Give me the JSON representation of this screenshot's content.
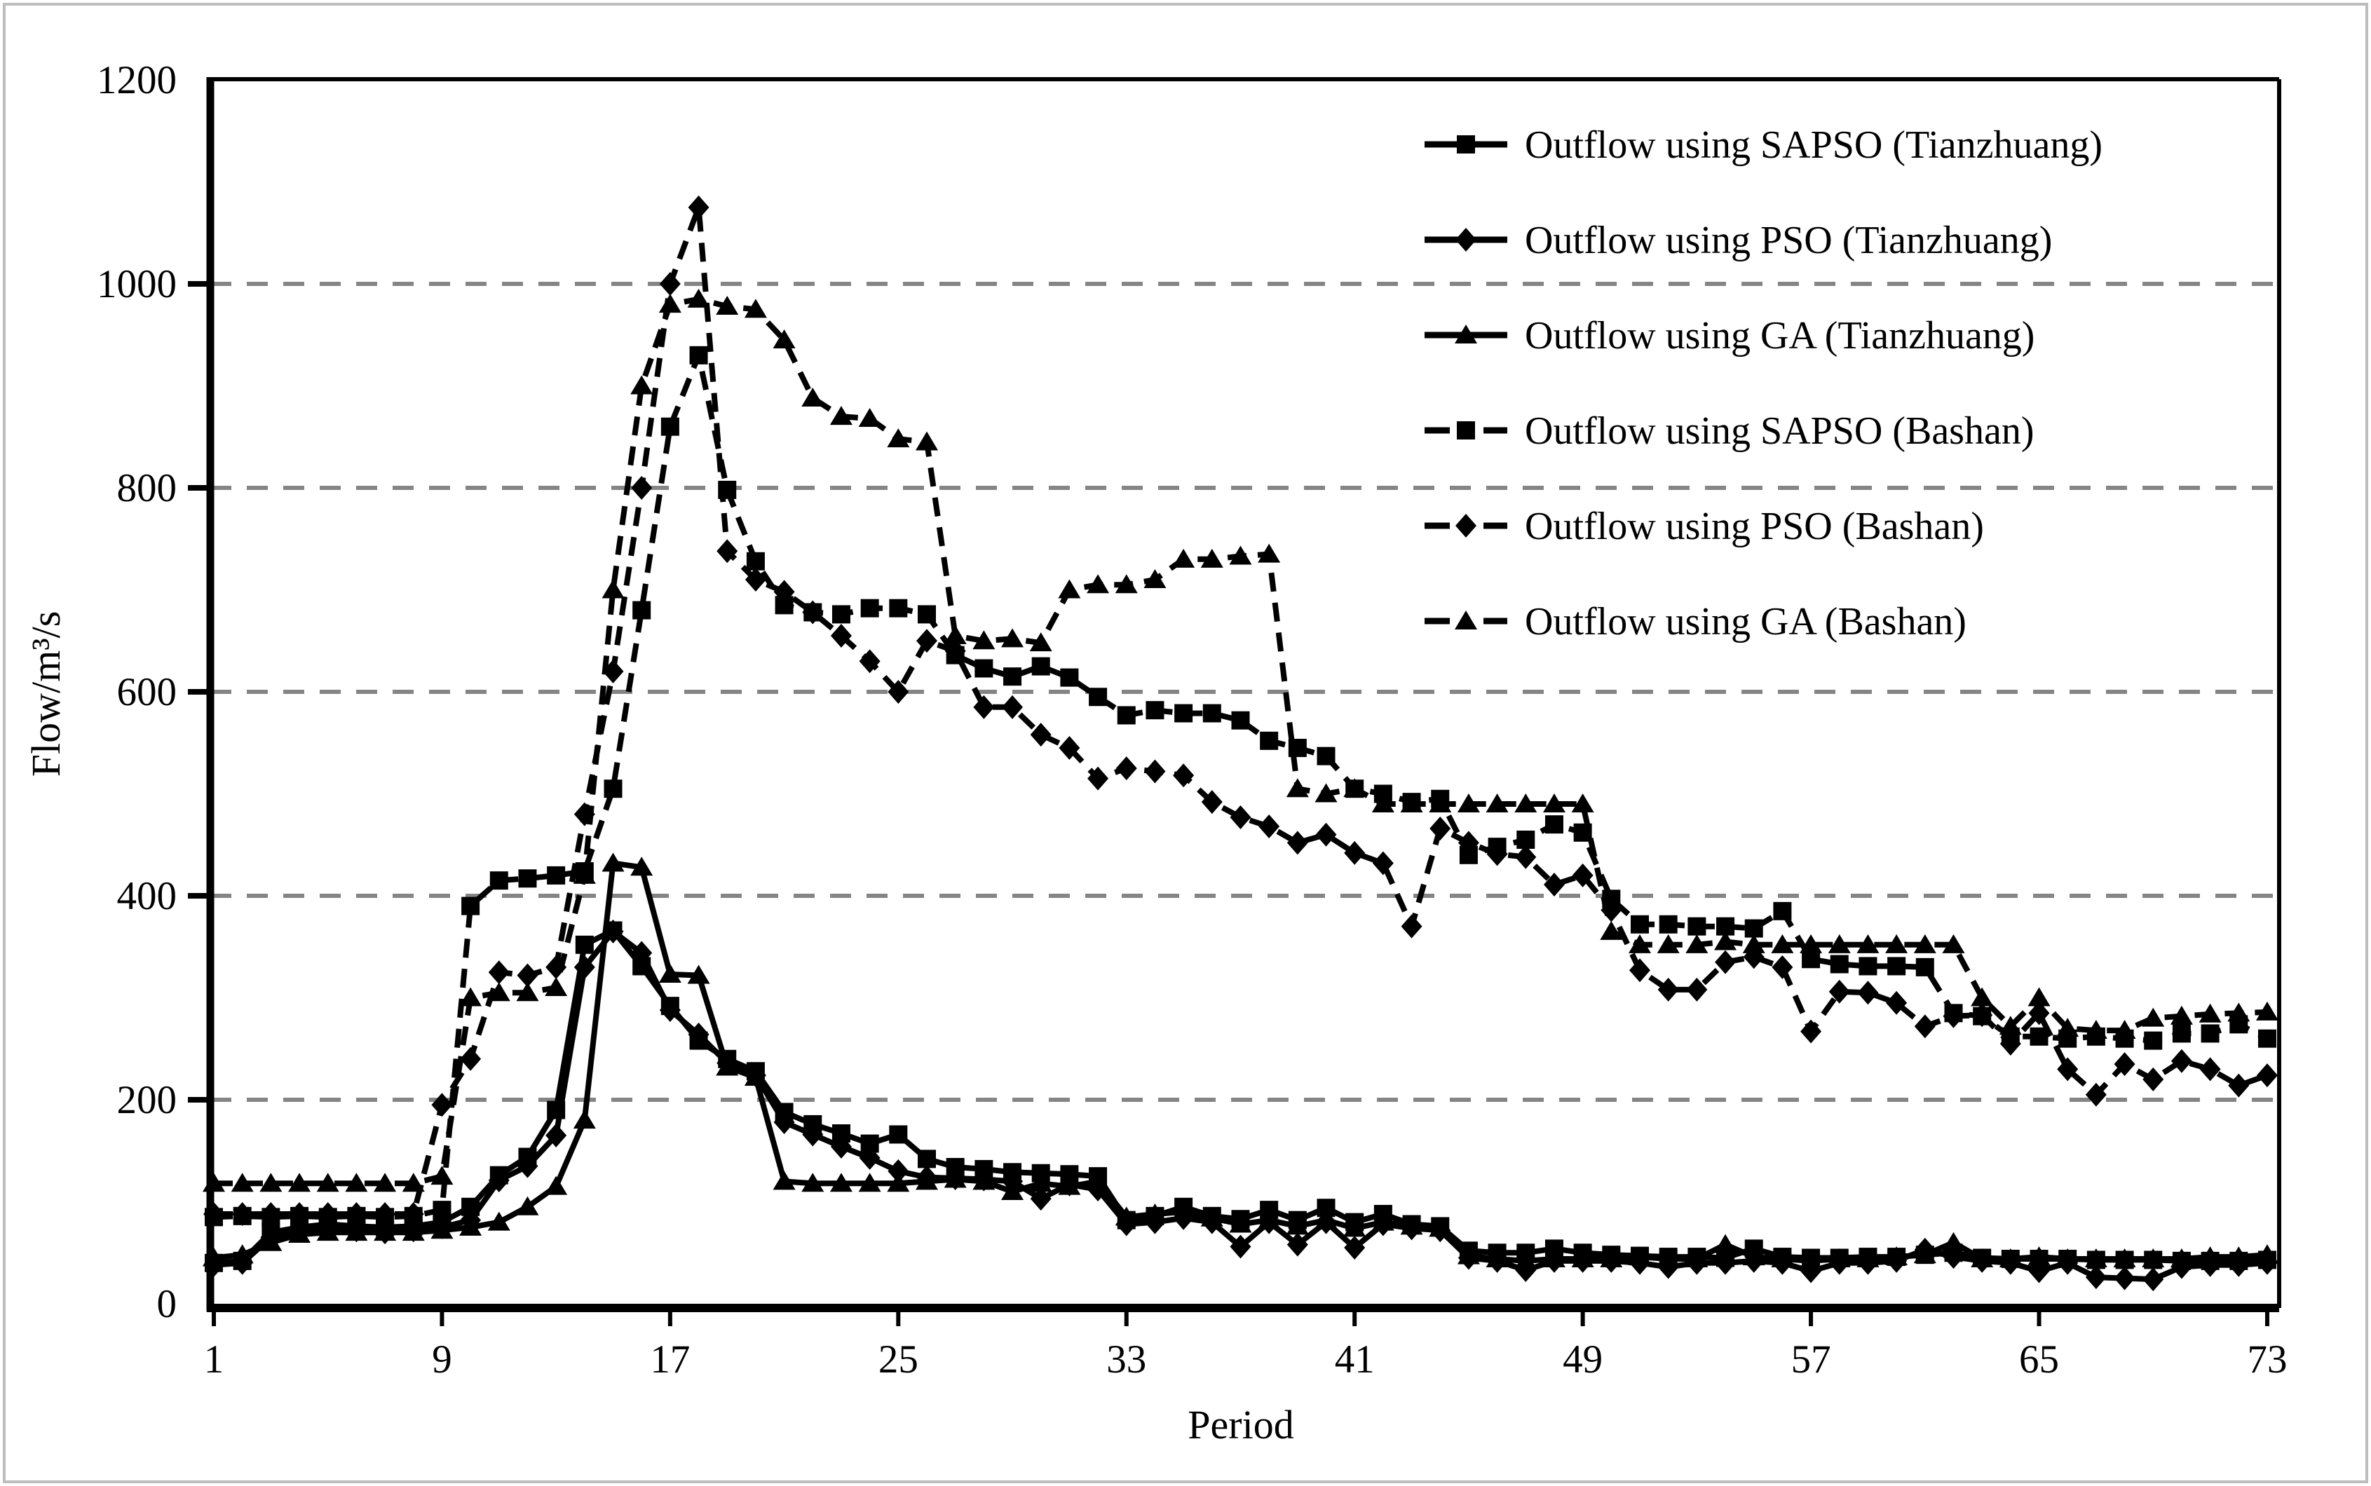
{
  "figure": {
    "background": "#ffffff",
    "frame_color": "#bdbdbd"
  },
  "chart_data": {
    "type": "line",
    "title": "",
    "xlabel": "Period",
    "ylabel": "Flow/m³/s",
    "xlim": [
      1,
      73
    ],
    "ylim": [
      0,
      1200
    ],
    "x_ticks": [
      1,
      9,
      17,
      25,
      33,
      41,
      49,
      57,
      65,
      73
    ],
    "y_ticks": [
      0,
      200,
      400,
      600,
      800,
      1000,
      1200
    ],
    "grid": "horizontal dashed gridlines at 200,400,600,800,1000",
    "legend_position": "inside top-right",
    "colors": {
      "series": "#000000",
      "grid": "#858585",
      "axis": "#000000",
      "background": "#ffffff"
    },
    "x": [
      1,
      2,
      3,
      4,
      5,
      6,
      7,
      8,
      9,
      10,
      11,
      12,
      13,
      14,
      15,
      16,
      17,
      18,
      19,
      20,
      21,
      22,
      23,
      24,
      25,
      26,
      27,
      28,
      29,
      30,
      31,
      32,
      33,
      34,
      35,
      36,
      37,
      38,
      39,
      40,
      41,
      42,
      43,
      44,
      45,
      46,
      47,
      48,
      49,
      50,
      51,
      52,
      53,
      54,
      55,
      56,
      57,
      58,
      59,
      60,
      61,
      62,
      63,
      64,
      65,
      66,
      67,
      68,
      69,
      70,
      71,
      72,
      73
    ],
    "series": [
      {
        "name": "Outflow using SAPSO (Tianzhuang)",
        "line": "solid",
        "marker": "square",
        "values": [
          40,
          42,
          70,
          75,
          78,
          76,
          75,
          76,
          80,
          95,
          126,
          144,
          190,
          352,
          366,
          331,
          292,
          258,
          240,
          228,
          188,
          176,
          167,
          157,
          166,
          142,
          134,
          132,
          129,
          128,
          127,
          125,
          82,
          86,
          95,
          86,
          83,
          92,
          82,
          94,
          80,
          88,
          78,
          76,
          52,
          50,
          50,
          54,
          50,
          48,
          47,
          46,
          46,
          45,
          54,
          46,
          45,
          45,
          46,
          46,
          48,
          50,
          45,
          44,
          44,
          44,
          43,
          43,
          43,
          42,
          42,
          42,
          43
        ]
      },
      {
        "name": "Outflow using PSO (Tianzhuang)",
        "line": "solid",
        "marker": "diamond",
        "values": [
          38,
          40,
          65,
          72,
          74,
          72,
          70,
          72,
          75,
          82,
          121,
          135,
          165,
          330,
          365,
          344,
          288,
          264,
          236,
          224,
          178,
          166,
          154,
          143,
          130,
          124,
          123,
          122,
          120,
          103,
          117,
          112,
          78,
          80,
          84,
          80,
          56,
          80,
          58,
          80,
          55,
          78,
          74,
          72,
          45,
          42,
          33,
          42,
          42,
          42,
          40,
          36,
          40,
          40,
          42,
          40,
          32,
          40,
          40,
          42,
          53,
          46,
          42,
          40,
          32,
          40,
          26,
          25,
          24,
          36,
          38,
          38,
          40
        ]
      },
      {
        "name": "Outflow using GA (Tianzhuang)",
        "line": "solid",
        "marker": "triangle",
        "values": [
          45,
          48,
          60,
          68,
          70,
          70,
          70,
          70,
          72,
          75,
          80,
          95,
          115,
          180,
          432,
          428,
          323,
          322,
          232,
          222,
          120,
          118,
          118,
          118,
          118,
          120,
          122,
          120,
          110,
          118,
          115,
          120,
          85,
          88,
          90,
          84,
          78,
          82,
          76,
          82,
          74,
          80,
          76,
          74,
          47,
          44,
          42,
          44,
          44,
          44,
          46,
          44,
          44,
          58,
          46,
          44,
          42,
          44,
          44,
          46,
          48,
          60,
          44,
          44,
          46,
          44,
          44,
          44,
          44,
          44,
          46,
          46,
          48
        ]
      },
      {
        "name": "Outflow using SAPSO (Bashan)",
        "line": "dashed",
        "marker": "square",
        "values": [
          85,
          86,
          85,
          86,
          85,
          86,
          85,
          86,
          92,
          390,
          415,
          417,
          420,
          424,
          505,
          680,
          860,
          930,
          798,
          728,
          685,
          678,
          676,
          682,
          682,
          676,
          636,
          623,
          615,
          625,
          614,
          595,
          577,
          582,
          579,
          579,
          572,
          552,
          545,
          537,
          505,
          500,
          492,
          495,
          440,
          448,
          455,
          470,
          462,
          397,
          372,
          372,
          370,
          370,
          368,
          385,
          338,
          333,
          331,
          331,
          330,
          285,
          282,
          262,
          262,
          260,
          262,
          260,
          258,
          265,
          265,
          274,
          260
        ]
      },
      {
        "name": "Outflow using PSO (Bashan)",
        "line": "dashed",
        "marker": "diamond",
        "values": [
          88,
          88,
          88,
          88,
          88,
          88,
          88,
          88,
          195,
          240,
          325,
          322,
          330,
          480,
          620,
          800,
          1000,
          1075,
          738,
          710,
          698,
          678,
          655,
          630,
          600,
          650,
          640,
          585,
          585,
          558,
          545,
          515,
          525,
          522,
          518,
          492,
          477,
          468,
          452,
          460,
          442,
          432,
          370,
          466,
          452,
          441,
          438,
          411,
          420,
          386,
          327,
          308,
          308,
          335,
          340,
          330,
          267,
          306,
          305,
          295,
          272,
          282,
          283,
          255,
          285,
          230,
          205,
          235,
          220,
          238,
          230,
          214,
          224
        ]
      },
      {
        "name": "Outflow using GA (Bashan)",
        "line": "dashed",
        "marker": "triangle",
        "values": [
          118,
          118,
          118,
          118,
          118,
          118,
          118,
          118,
          125,
          300,
          305,
          305,
          310,
          420,
          700,
          900,
          980,
          985,
          978,
          975,
          945,
          888,
          870,
          868,
          848,
          845,
          655,
          650,
          652,
          648,
          700,
          705,
          705,
          710,
          730,
          730,
          733,
          735,
          505,
          500,
          505,
          490,
          490,
          490,
          490,
          490,
          490,
          490,
          490,
          365,
          352,
          352,
          352,
          355,
          352,
          352,
          352,
          352,
          352,
          352,
          352,
          352,
          300,
          272,
          300,
          270,
          268,
          268,
          280,
          282,
          284,
          285,
          286
        ]
      }
    ]
  }
}
